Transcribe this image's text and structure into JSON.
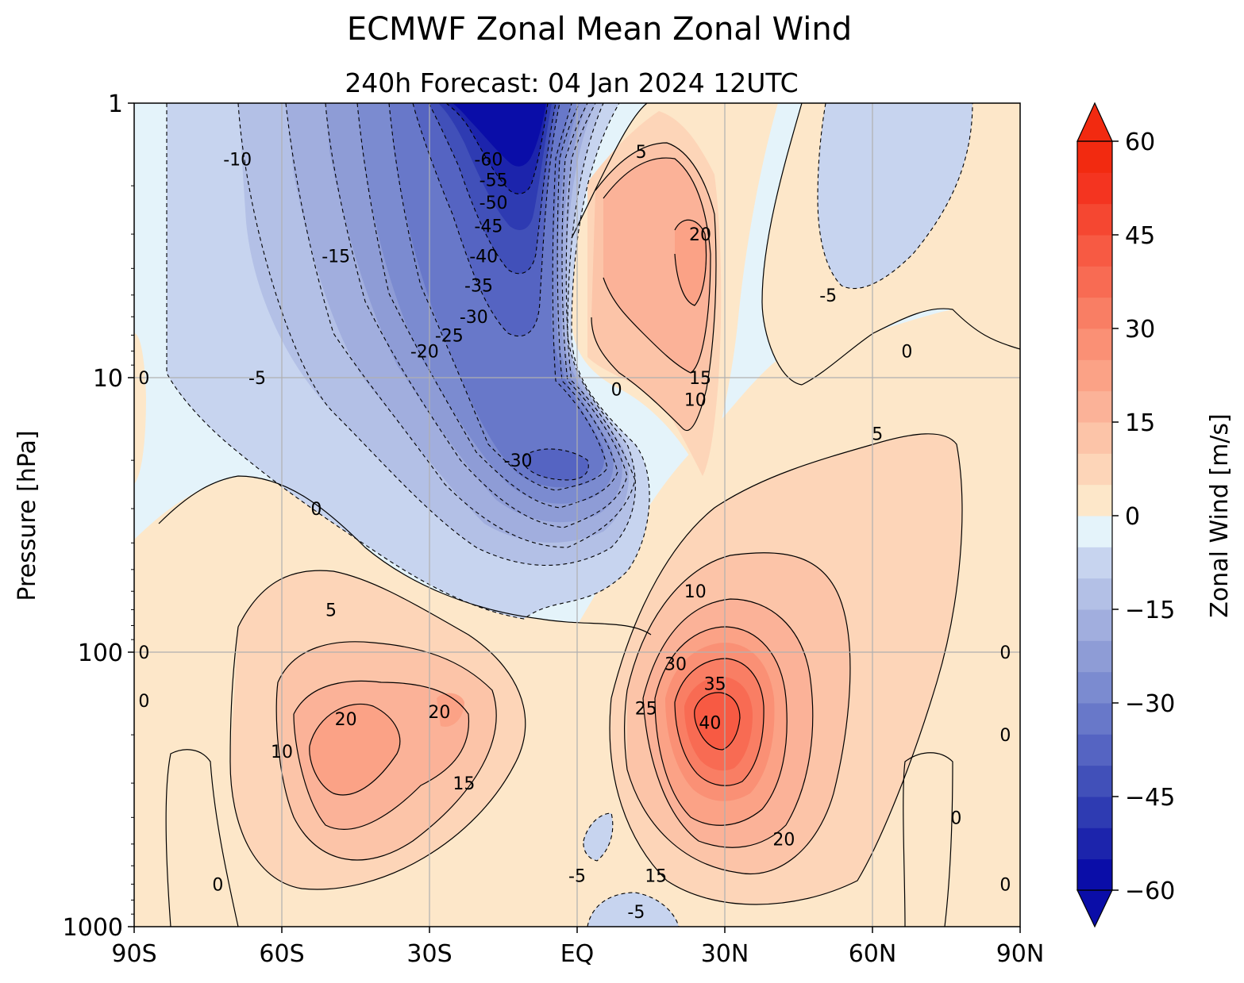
{
  "chart_data": {
    "type": "heatmap",
    "subtype": "filled-contour",
    "title": "ECMWF Zonal Mean Zonal Wind",
    "subtitle": "240h  Forecast:  04 Jan 2024  12UTC",
    "xlabel": "",
    "ylabel": "Pressure [hPa]",
    "x_ticks": [
      "90S",
      "60S",
      "30S",
      "EQ",
      "30N",
      "60N",
      "90N"
    ],
    "x_range": [
      -90,
      90
    ],
    "y_ticks": [
      "1",
      "10",
      "100",
      "1000"
    ],
    "y_range": [
      1000,
      1
    ],
    "y_scale": "log",
    "grid": true,
    "colorbar": {
      "label": "Zonal Wind [m/s]",
      "ticks": [
        "−60",
        "−45",
        "−30",
        "−15",
        "0",
        "15",
        "30",
        "45",
        "60"
      ],
      "range": [
        -60,
        60
      ],
      "interval": 5,
      "extend": "both",
      "neg_colors": [
        "#0a0da8",
        "#1c24ac",
        "#2e3bb2",
        "#4150b9",
        "#5564c2",
        "#6878c9",
        "#7b8bd0",
        "#8e9cd6",
        "#a1aede",
        "#b3c0e6",
        "#c7d4ef",
        "#e4f3fa"
      ],
      "pos_colors": [
        "#fde7c9",
        "#fdd5b8",
        "#fcc4a8",
        "#fbb298",
        "#fba286",
        "#fa9075",
        "#f97e64",
        "#f86b53",
        "#f75a43",
        "#f54731",
        "#f43420",
        "#f22a10"
      ]
    },
    "features": [
      {
        "label": "-60",
        "lat": -18,
        "p": 1.6,
        "u": -62
      },
      {
        "label": "-55",
        "lat": -17,
        "p": 1.9,
        "u": -55
      },
      {
        "label": "-50",
        "lat": -17,
        "p": 2.3,
        "u": -50
      },
      {
        "label": "-45",
        "lat": -18,
        "p": 2.8,
        "u": -45
      },
      {
        "label": "-40",
        "lat": -19,
        "p": 3.6,
        "u": -40
      },
      {
        "label": "-35",
        "lat": -20,
        "p": 4.6,
        "u": -35
      },
      {
        "label": "-30",
        "lat": -21,
        "p": 6.0,
        "u": -30
      },
      {
        "label": "-25",
        "lat": -26,
        "p": 7.0,
        "u": -25
      },
      {
        "label": "-20",
        "lat": -31,
        "p": 8.0,
        "u": -20
      },
      {
        "label": "-15",
        "lat": -49,
        "p": 3.6,
        "u": -15
      },
      {
        "label": "-10",
        "lat": -69,
        "p": 1.6,
        "u": -10
      },
      {
        "label": "-5",
        "lat": -65,
        "p": 10,
        "u": -5
      },
      {
        "label": "-30",
        "lat": -12,
        "p": 20,
        "u": -30
      },
      {
        "label": "0",
        "lat": -53,
        "p": 30,
        "u": 0
      },
      {
        "label": "5",
        "lat": -50,
        "p": 70,
        "u": 5
      },
      {
        "label": "10",
        "lat": -60,
        "p": 230,
        "u": 10
      },
      {
        "label": "20",
        "lat": -47,
        "p": 175,
        "u": 22
      },
      {
        "label": "20",
        "lat": -28,
        "p": 165,
        "u": 20
      },
      {
        "label": "15",
        "lat": -23,
        "p": 300,
        "u": 15
      },
      {
        "label": "5",
        "lat": 13,
        "p": 1.5,
        "u": 5
      },
      {
        "label": "20",
        "lat": 25,
        "p": 3.0,
        "u": 22
      },
      {
        "label": "15",
        "lat": 25,
        "p": 10,
        "u": 15
      },
      {
        "label": "10",
        "lat": 24,
        "p": 12,
        "u": 10
      },
      {
        "label": "0",
        "lat": 8,
        "p": 11,
        "u": 0
      },
      {
        "label": "-5",
        "lat": 51,
        "p": 5,
        "u": -5
      },
      {
        "label": "0",
        "lat": 67,
        "p": 8,
        "u": 0
      },
      {
        "label": "5",
        "lat": 61,
        "p": 16,
        "u": 5
      },
      {
        "label": "10",
        "lat": 24,
        "p": 60,
        "u": 10
      },
      {
        "label": "30",
        "lat": 20,
        "p": 110,
        "u": 30
      },
      {
        "label": "35",
        "lat": 28,
        "p": 130,
        "u": 35
      },
      {
        "label": "25",
        "lat": 14,
        "p": 160,
        "u": 25
      },
      {
        "label": "40",
        "lat": 27,
        "p": 180,
        "u": 42
      },
      {
        "label": "20",
        "lat": 42,
        "p": 480,
        "u": 20
      },
      {
        "label": "15",
        "lat": 16,
        "p": 650,
        "u": 15
      },
      {
        "label": "-5",
        "lat": 0,
        "p": 650,
        "u": -5
      },
      {
        "label": "-5",
        "lat": 12,
        "p": 880,
        "u": -5
      },
      {
        "label": "0",
        "lat": -73,
        "p": 700,
        "u": 0
      },
      {
        "label": "0",
        "lat": -88,
        "p": 10,
        "u": 0
      },
      {
        "label": "0",
        "lat": -88,
        "p": 100,
        "u": 0
      },
      {
        "label": "0",
        "lat": -88,
        "p": 150,
        "u": 0
      },
      {
        "label": "0",
        "lat": 87,
        "p": 100,
        "u": 0
      },
      {
        "label": "0",
        "lat": 87,
        "p": 200,
        "u": 0
      },
      {
        "label": "0",
        "lat": 77,
        "p": 400,
        "u": 0
      },
      {
        "label": "0",
        "lat": 87,
        "p": 700,
        "u": 0
      }
    ]
  }
}
